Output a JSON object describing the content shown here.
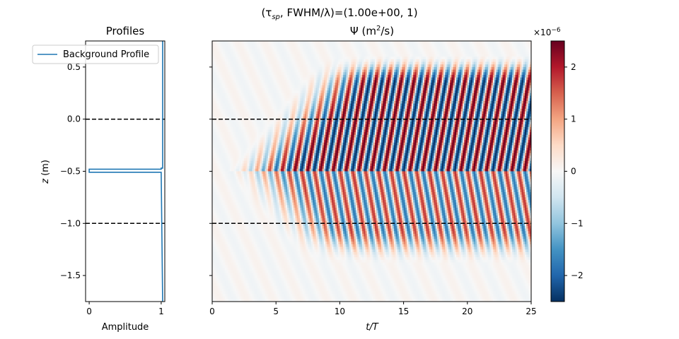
{
  "figure": {
    "suptitle_prefix": "(τ",
    "suptitle_sub": "sp",
    "suptitle_suffix": ", FWHM/λ)=(1.00e+00, 1)"
  },
  "chart_data": [
    {
      "type": "line",
      "title": "Profiles",
      "xlabel": "Amplitude",
      "ylabel": "z (m)",
      "ylabel_var": "z",
      "ylabel_unit": " (m)",
      "xlim": [
        -0.05,
        1.05
      ],
      "ylim": [
        -1.75,
        0.75
      ],
      "xticks": [
        0,
        1
      ],
      "xtick_labels": [
        "0",
        "1"
      ],
      "yticks": [
        0.5,
        0.0,
        -0.5,
        -1.0,
        -1.5
      ],
      "ytick_labels": [
        "0.5",
        "0.0",
        "−0.5",
        "−1.0",
        "−1.5"
      ],
      "legend": {
        "position": "top-left",
        "entries": [
          "Background Profile"
        ]
      },
      "series": [
        {
          "name": "Background Profile",
          "color": "#1f77b4",
          "x": [
            1.02,
            1.02,
            1.0,
            1.0,
            0.0,
            0.0,
            1.0,
            1.0,
            1.02
          ],
          "y": [
            0.75,
            -0.47,
            -0.47,
            -0.48,
            -0.48,
            -0.51,
            -0.51,
            -0.52,
            -1.75
          ]
        }
      ],
      "hlines": [
        {
          "y": 0.0,
          "style": "dashed",
          "color": "#000000"
        },
        {
          "y": -1.0,
          "style": "dashed",
          "color": "#000000"
        }
      ]
    },
    {
      "type": "heatmap",
      "title": "Ψ (m²/s)",
      "title_main": "Ψ (m",
      "title_sup": "2",
      "title_end": "/s)",
      "xlabel": "t/T",
      "xlim": [
        0,
        25
      ],
      "ylim": [
        -1.75,
        0.75
      ],
      "xticks": [
        0,
        5,
        10,
        15,
        20,
        25
      ],
      "xtick_labels": [
        "0",
        "5",
        "10",
        "15",
        "20",
        "25"
      ],
      "yticks": [
        0.5,
        0.0,
        -0.5,
        -1.0,
        -1.5
      ],
      "colormap": "RdBu_r",
      "colormap_stops": [
        "#053061",
        "#2166ac",
        "#4393c3",
        "#92c5de",
        "#d1e5f0",
        "#f7f7f7",
        "#fddbc7",
        "#f4a582",
        "#d6604d",
        "#b2182b",
        "#67001f"
      ],
      "vlim": [
        -2.5e-06,
        2.5e-06
      ],
      "pattern": {
        "wave_period_t": 1,
        "vertical_wavelength_m": 0.65,
        "upper_band_z": [
          -0.5,
          0.55
        ],
        "lower_band_z": [
          -1.35,
          -0.5
        ],
        "peak_amplitude": 2.4e-06
      },
      "hlines": [
        {
          "y": 0.0,
          "style": "dashed",
          "color": "#000000"
        },
        {
          "y": -1.0,
          "style": "dashed",
          "color": "#000000"
        }
      ]
    },
    {
      "type": "colorbar",
      "ticks": [
        -2,
        -1,
        0,
        1,
        2
      ],
      "tick_labels": [
        "−2",
        "−1",
        "0",
        "1",
        "2"
      ],
      "range": [
        -2.5,
        2.5
      ],
      "offset_base": "×10",
      "offset_exp": "−6"
    }
  ]
}
